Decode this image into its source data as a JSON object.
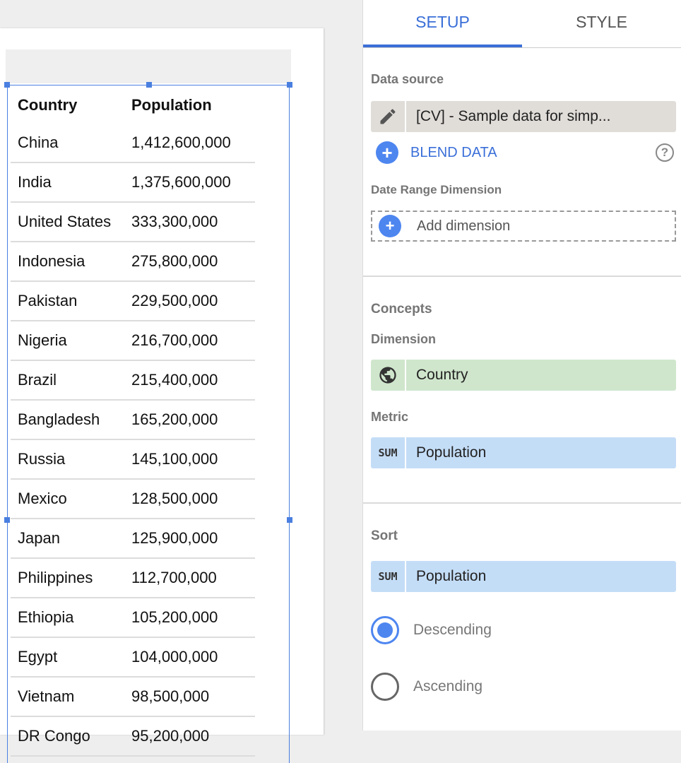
{
  "table": {
    "headers": [
      "Country",
      "Population"
    ],
    "rows": [
      [
        "China",
        "1,412,600,000"
      ],
      [
        "India",
        "1,375,600,000"
      ],
      [
        "United States",
        "333,300,000"
      ],
      [
        "Indonesia",
        "275,800,000"
      ],
      [
        "Pakistan",
        "229,500,000"
      ],
      [
        "Nigeria",
        "216,700,000"
      ],
      [
        "Brazil",
        "215,400,000"
      ],
      [
        "Bangladesh",
        "165,200,000"
      ],
      [
        "Russia",
        "145,100,000"
      ],
      [
        "Mexico",
        "128,500,000"
      ],
      [
        "Japan",
        "125,900,000"
      ],
      [
        "Philippines",
        "112,700,000"
      ],
      [
        "Ethiopia",
        "105,200,000"
      ],
      [
        "Egypt",
        "104,000,000"
      ],
      [
        "Vietnam",
        "98,500,000"
      ],
      [
        "DR Congo",
        "95,200,000"
      ]
    ]
  },
  "panel": {
    "tabs": [
      "SETUP",
      "STYLE"
    ],
    "active_tab": "SETUP",
    "data_source_label": "Data source",
    "data_source": "[CV] - Sample data for simp...",
    "blend_data": "BLEND DATA",
    "date_range_label": "Date Range Dimension",
    "add_dimension": "Add dimension",
    "concepts_label": "Concepts",
    "dimension_label": "Dimension",
    "dimension": "Country",
    "metric_label": "Metric",
    "metric_agg": "SUM",
    "metric": "Population",
    "sort_label": "Sort",
    "sort_agg": "SUM",
    "sort_field": "Population",
    "sort_options": [
      "Descending",
      "Ascending"
    ],
    "sort_selected": "Descending"
  },
  "colors": {
    "accent": "#4e86f0",
    "dimension_chip": "#cfe6cc",
    "metric_chip": "#c4ddf7",
    "source_chip": "#e0ddd9"
  }
}
